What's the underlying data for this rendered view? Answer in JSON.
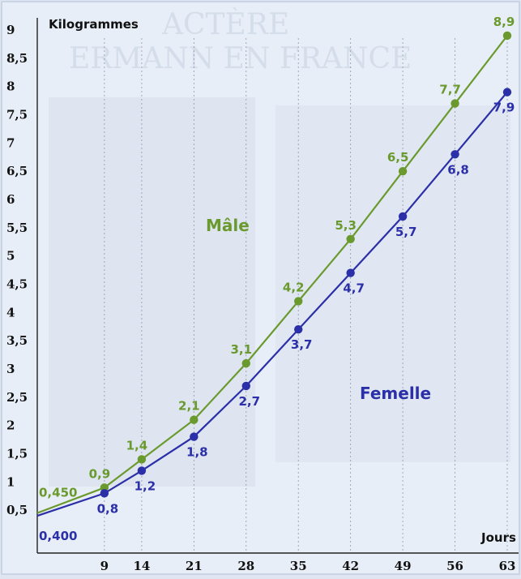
{
  "chart_data": {
    "type": "line",
    "ylabel": "Kilogrammes",
    "xlabel": "Jours",
    "xlim": [
      0,
      63
    ],
    "ylim": [
      0,
      9
    ],
    "x_ticks": [
      9,
      14,
      21,
      28,
      35,
      42,
      49,
      56,
      63
    ],
    "y_ticks": [
      "9",
      "8,5",
      "8",
      "7,5",
      "7",
      "6,5",
      "6",
      "5,5",
      "5",
      "4,5",
      "4",
      "3,5",
      "3",
      "2,5",
      "2",
      "1,5",
      "1",
      "0,5"
    ],
    "grid": "vertical dotted lines at each x tick",
    "x": [
      0,
      9,
      14,
      21,
      28,
      35,
      42,
      49,
      56,
      63
    ],
    "series": [
      {
        "name": "Mâle",
        "color": "#6a9a2e",
        "values": [
          0.45,
          0.9,
          1.4,
          2.1,
          3.1,
          4.2,
          5.3,
          6.5,
          7.7,
          8.9
        ],
        "labels": [
          "0,450",
          "0,9",
          "1,4",
          "2,1",
          "3,1",
          "4,2",
          "5,3",
          "6,5",
          "7,7",
          "8,9"
        ]
      },
      {
        "name": "Femelle",
        "color": "#2b2fa8",
        "values": [
          0.4,
          0.8,
          1.2,
          1.8,
          2.7,
          3.7,
          4.7,
          5.7,
          6.8,
          7.9
        ],
        "labels": [
          "0,400",
          "0,8",
          "1,2",
          "1,8",
          "2,7",
          "3,7",
          "4,7",
          "5,7",
          "6,8",
          "7,9"
        ]
      }
    ],
    "background_text": [
      "ACTÈRE",
      "ERMANN EN FRANCE"
    ]
  }
}
